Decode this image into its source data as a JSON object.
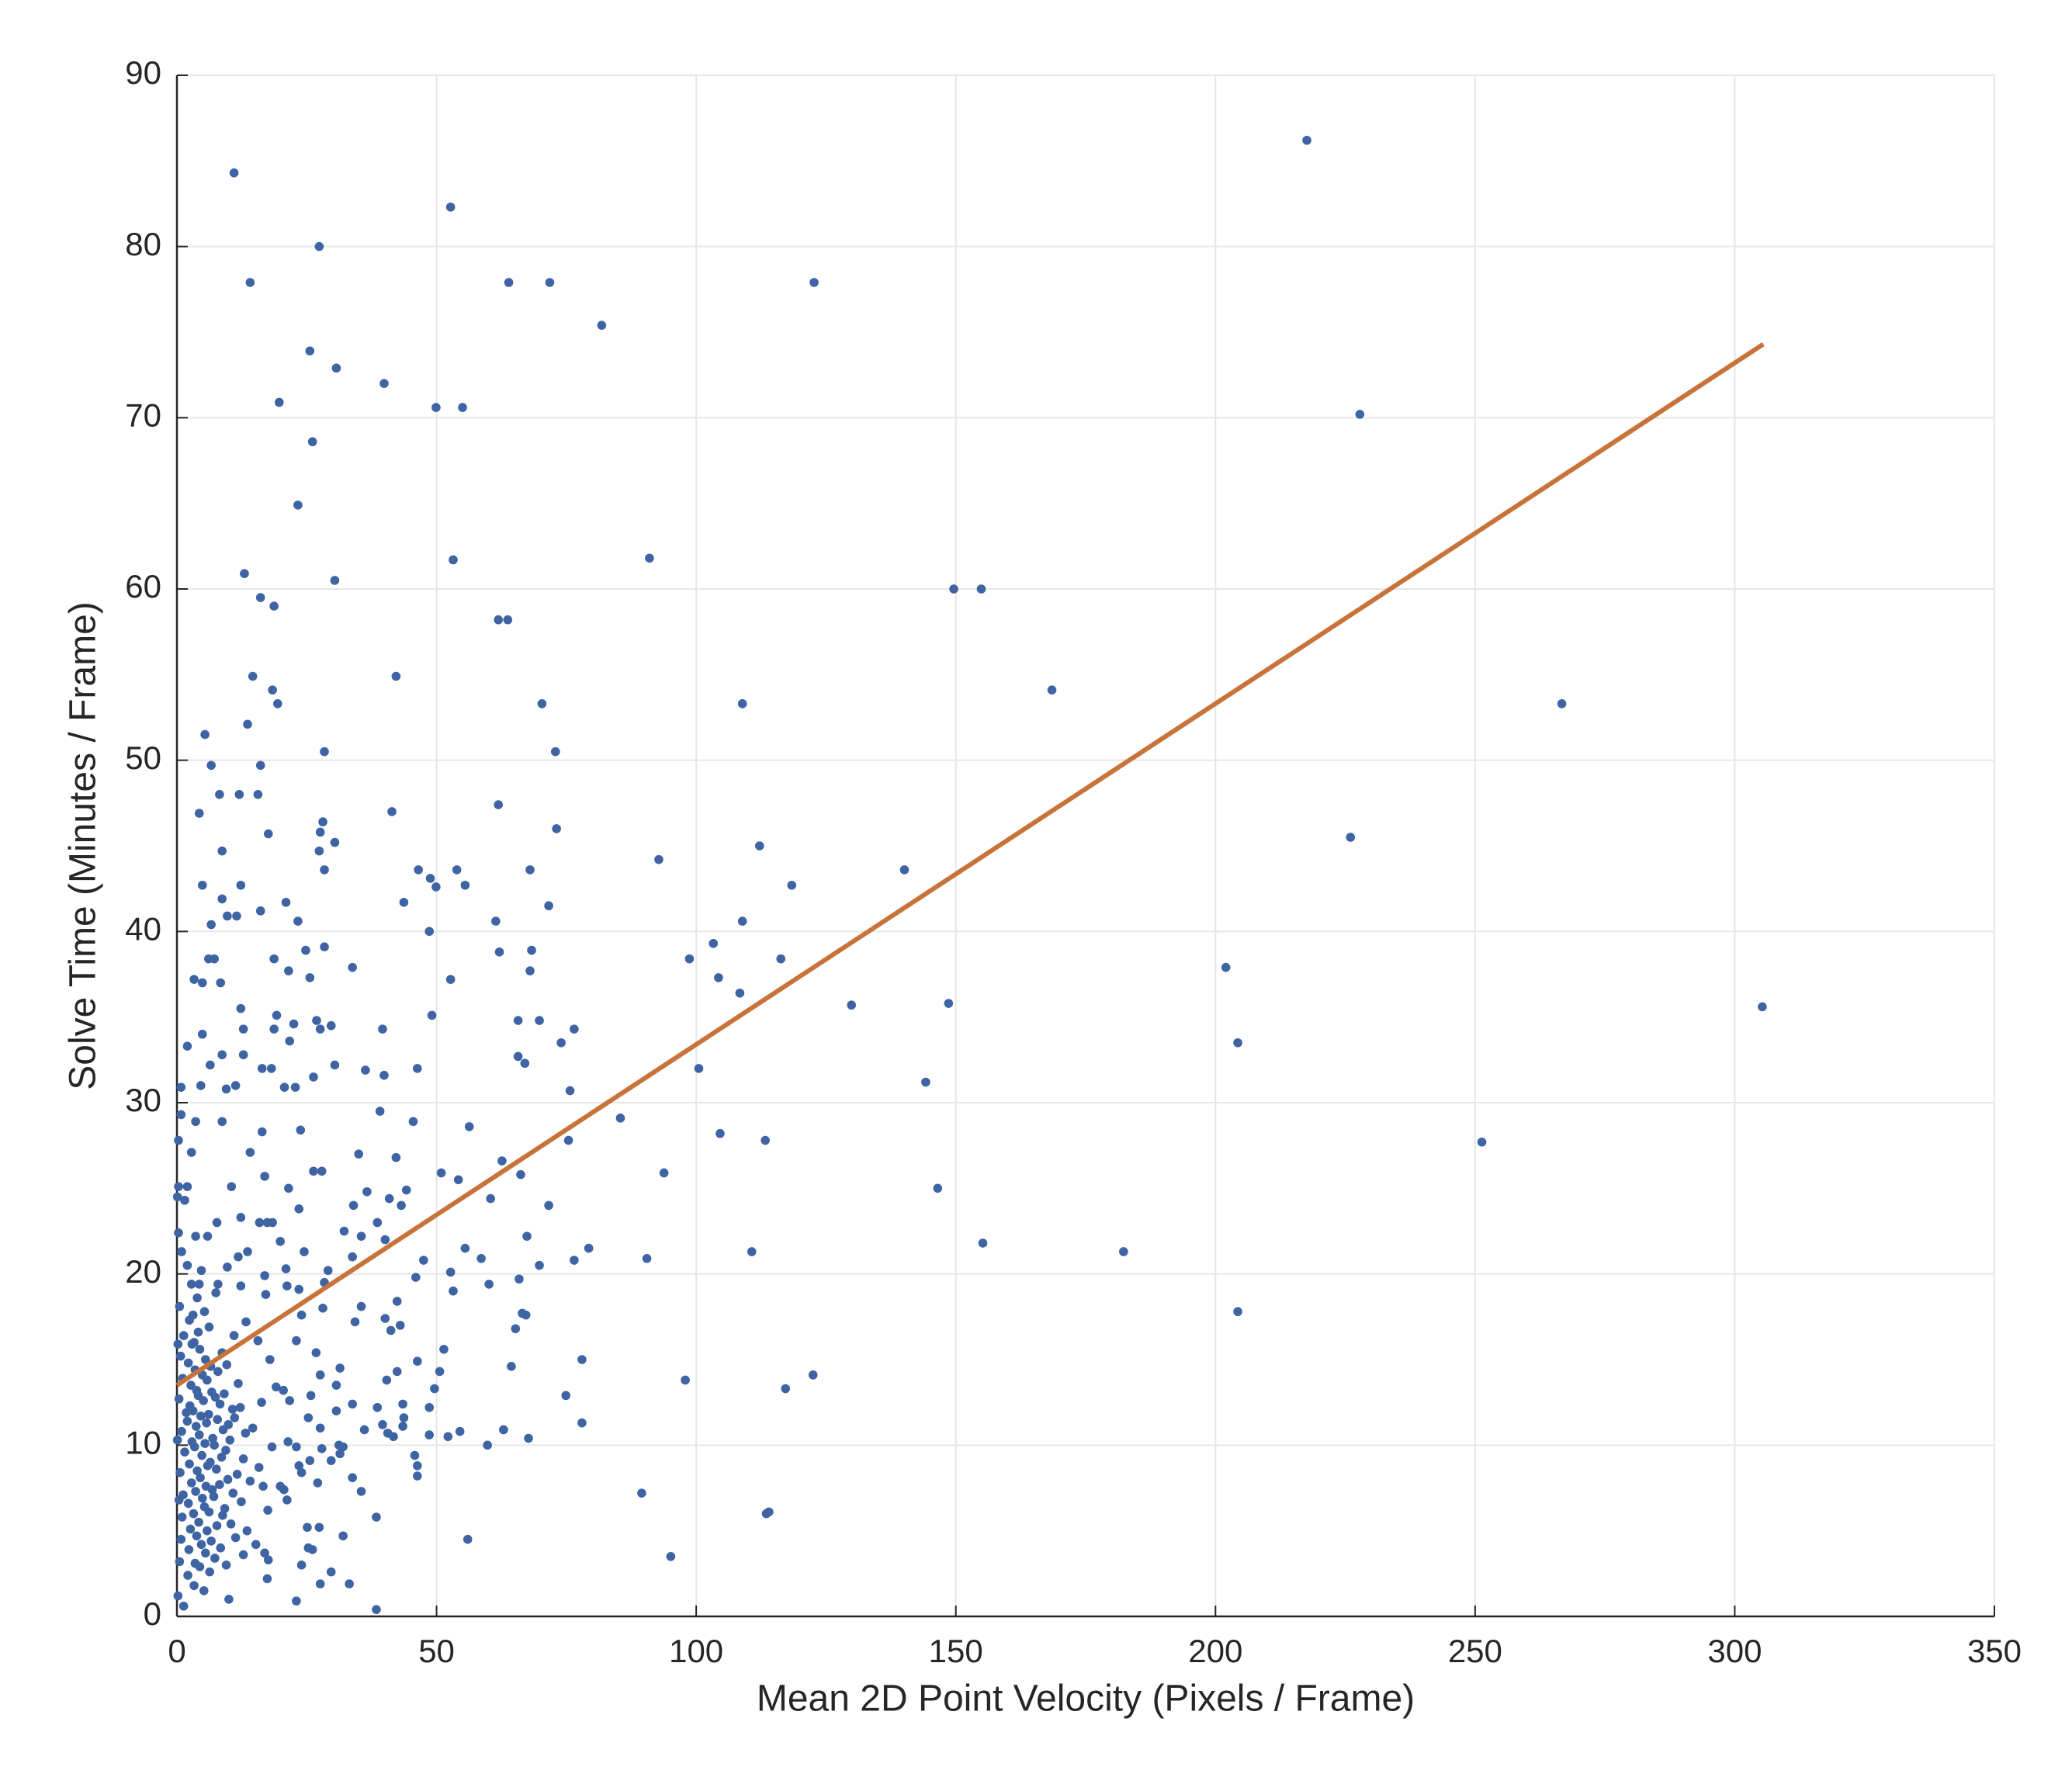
{
  "chart_data": {
    "type": "scatter",
    "x_label": "Mean 2D Point Velocity (Pixels / Frame)",
    "y_label": "Solve Time (Minutes / Frame)",
    "xlim": [
      0,
      350
    ],
    "xticks": [
      0,
      50,
      100,
      150,
      200,
      250,
      300,
      350
    ],
    "ylim": [
      0,
      90
    ],
    "yticks": [
      0,
      10,
      20,
      30,
      40,
      50,
      60,
      70,
      80,
      90
    ],
    "grid": true,
    "series": [
      {
        "color": "#3e64a3",
        "x": [
          11,
          217.6,
          52.7,
          27.4,
          14.1,
          63.9,
          71.8,
          122.7,
          81.8,
          25.6,
          30.7,
          39.9,
          19.7,
          49.9,
          55.0,
          227.8,
          26.1,
          23.3,
          91.0,
          53.2,
          13.0,
          30.4,
          16.1,
          18.7,
          149.6,
          154.9,
          61.9,
          63.7,
          168.5,
          42.2,
          14.6,
          18.4,
          19.4,
          70.3,
          108.9,
          266.7,
          13.6,
          5.4,
          28.4,
          72.9,
          6.6,
          16.1,
          8.2,
          12.0,
          15.6,
          61.9,
          41.4,
          4.3,
          28.1,
          73.1,
          27.6,
          226.0,
          30.4,
          17.6,
          112.2,
          27.4,
          8.7,
          92.8,
          28.4,
          46.5,
          53.9,
          68.0,
          140.1,
          48.8,
          55.5,
          118.4,
          4.9,
          12.3,
          49.9,
          8.7,
          43.7,
          21.0,
          71.6,
          16.1,
          9.7,
          11.5,
          6.6,
          23.3,
          61.4,
          108.9,
          48.6,
          103.3,
          28.4,
          24.8,
          68.3,
          6.1,
          7.2,
          18.7,
          98.7,
          116.3,
          62.1,
          33.8,
          202.0,
          21.5,
          68.0,
          25.6,
          3.3,
          104.3,
          52.7,
          4.9,
          8.4,
          108.4,
          129.9,
          148.6,
          305.3,
          12.3,
          19.2,
          49.1,
          26.9,
          65.7,
          69.8,
          22.5,
          29.7,
          39.6,
          76.5,
          4.9,
          12.8,
          18.7,
          27.6,
          74.0,
          204.3,
          2.0,
          21.7,
          8.7,
          12.8,
          65.7,
          67.0,
          100.5,
          30.4,
          46.3,
          36.3,
          16.4,
          6.4,
          18.2,
          26.3,
          39.9,
          144.2,
          0.8,
          22.8,
          75.7,
          4.6,
          20.7,
          9.5,
          11.3,
          39.1,
          0.8,
          85.4,
          45.5,
          3.6,
          8.7,
          56.3,
          104.6,
          23.8,
          16.4,
          113.3,
          0.3,
          251.3,
          75.4,
          14.1,
          42.2,
          35.0,
          2.8,
          62.6,
          26.3,
          27.9,
          50.9,
          66.2,
          93.8,
          54.2,
          0.3,
          16.9,
          2.0,
          10.5,
          21.5,
          146.5,
          36.6,
          44.2,
          40.9,
          60.4,
          1.5,
          71.6,
          43.2,
          34.0,
          23.5,
          12.3,
          15.9,
          17.4,
          18.4,
          7.7,
          38.6,
          67.4,
          32.2,
          35.5,
          3.6,
          5.9,
          19.9,
          155.2,
          40.1,
          55.5,
          79.3,
          110.7,
          182.3,
          24.5,
          33.8,
          13.6,
          11.8,
          47.5,
          58.6,
          90.5,
          76.5,
          69.8,
          2.0,
          9.7,
          21.0,
          52.7,
          29.1,
          16.9,
          60.1,
          28.4,
          65.9,
          46.0,
          2.8,
          4.3,
          7.9,
          12.3,
          21.2,
          53.2,
          23.5,
          17.1,
          35.5,
          42.4,
          28.1,
          66.5,
          67.2,
          204.3,
          24.0,
          3.1,
          40.1,
          34.3,
          13.3,
          65.2,
          43.0,
          41.2,
          4.1,
          11.0,
          15.6,
          23.0,
          51.4,
          26.8,
          17.9,
          78.0,
          46.3,
          42.4,
          64.4,
          31.4,
          50.6,
          122.5,
          27.6,
          117.2,
          97.9,
          40.4,
          30.7,
          49.6,
          74.9,
          20.5,
          25.8,
          21.7,
          33.8,
          38.6,
          43.5,
          48.6,
          30.7,
          43.7,
          25.3,
          78.0,
          39.6,
          27.6,
          43.5,
          62.9,
          54.5,
          40.6,
          36.1,
          41.7,
          52.2,
          48.6,
          67.7,
          59.8,
          32.0,
          31.2,
          23.0,
          27.9,
          45.8,
          46.3,
          46.3,
          25.6,
          31.4,
          29.7,
          23.5,
          24.0,
          33.8,
          35.5,
          89.5,
          16.6,
          19.9,
          27.1,
          21.2,
          114.0,
          113.5,
          38.4,
          25.1,
          27.4,
          32.0,
          56.0,
          25.3,
          26.1,
          95.1,
          16.9,
          17.6,
          12.8,
          24.0,
          29.7,
          17.4,
          27.6,
          33.2,
          23.0,
          10.0,
          38.4,
          1.3,
          0.5,
          0.8,
          1.0,
          1.2,
          0.6,
          1.5,
          0.9,
          1.8,
          0.4,
          1.1,
          0.7,
          1.3,
          0.5,
          0.9,
          2.1,
          2.3,
          2.6,
          2.2,
          2.8,
          2.4,
          2.9,
          2.0,
          2.5,
          2.7,
          2.2,
          2.9,
          2.4,
          3.3,
          3.5,
          3.8,
          3.2,
          3.6,
          3.9,
          3.4,
          3.7,
          3.1,
          3.8,
          3.5,
          3.3,
          3.9,
          4.4,
          4.7,
          4.2,
          4.9,
          4.5,
          4.8,
          4.3,
          4.6,
          4.1,
          4.9,
          4.4,
          4.7,
          5.2,
          5.5,
          5.8,
          5.3,
          5.6,
          5.9,
          5.4,
          5.7,
          5.1,
          5.8,
          5.5,
          5.3,
          6.3,
          6.6,
          6.2,
          6.8,
          6.4,
          6.9,
          6.1,
          6.7,
          6.5,
          6.2,
          7.3,
          7.7,
          7.1,
          7.6,
          7.2,
          7.8,
          7.4,
          7.9,
          7.5,
          8.4,
          8.8,
          8.2,
          8.6,
          8.9,
          8.3,
          8.7,
          9.5,
          9.2,
          9.8,
          9.4,
          9.9,
          9.1,
          9.6,
          10.4,
          10.8,
          10.2,
          10.7,
          11.3,
          11.6,
          11.1,
          11.8,
          12.4,
          12.8,
          12.2,
          13.5,
          13.2,
          14.1,
          14.6,
          15.2,
          15.8,
          16.3,
          17.5,
          18.3,
          19.1,
          20.6,
          21.4,
          0.2,
          0.3,
          0.1,
          0.2,
          0.4,
          0.1
        ],
        "values": [
          84.3,
          86.2,
          82.3,
          80.0,
          77.9,
          77.9,
          77.9,
          77.9,
          75.4,
          73.9,
          72.9,
          72.0,
          70.9,
          70.6,
          70.6,
          70.2,
          68.6,
          64.9,
          61.8,
          61.7,
          60.9,
          60.5,
          59.5,
          59.0,
          60.0,
          60.0,
          58.2,
          58.2,
          54.1,
          54.9,
          54.9,
          54.1,
          53.3,
          53.3,
          53.3,
          53.3,
          52.1,
          51.5,
          50.5,
          50.5,
          49.7,
          49.7,
          48.0,
          48.0,
          48.0,
          47.4,
          47.0,
          46.9,
          46.4,
          46.0,
          45.8,
          45.5,
          45.2,
          45.7,
          45.0,
          44.7,
          44.7,
          44.2,
          43.6,
          43.6,
          43.6,
          43.6,
          43.6,
          43.1,
          42.7,
          42.7,
          42.7,
          42.7,
          42.6,
          41.9,
          41.7,
          41.7,
          41.5,
          41.2,
          40.9,
          40.9,
          40.4,
          40.6,
          40.6,
          40.6,
          40.0,
          39.3,
          39.1,
          38.9,
          38.9,
          38.4,
          38.4,
          38.4,
          38.4,
          38.4,
          38.8,
          37.9,
          37.9,
          37.7,
          37.7,
          37.3,
          37.2,
          37.3,
          37.2,
          37.0,
          37.0,
          36.4,
          35.7,
          35.8,
          35.6,
          35.5,
          35.1,
          35.1,
          34.8,
          34.8,
          34.8,
          34.6,
          34.5,
          34.3,
          34.3,
          34.0,
          34.3,
          34.3,
          34.3,
          33.5,
          33.5,
          33.3,
          33.6,
          32.8,
          32.8,
          32.7,
          32.3,
          32.0,
          32.2,
          32.0,
          31.9,
          32.0,
          32.2,
          32.0,
          31.5,
          31.6,
          31.2,
          30.9,
          30.9,
          30.7,
          31.0,
          30.9,
          30.8,
          31.0,
          29.5,
          29.3,
          29.1,
          28.9,
          28.9,
          28.9,
          28.6,
          28.2,
          28.4,
          28.3,
          27.8,
          27.8,
          27.7,
          27.8,
          27.1,
          26.8,
          27.0,
          27.1,
          26.6,
          26.0,
          26.0,
          25.9,
          25.8,
          25.9,
          25.5,
          25.1,
          25.7,
          25.1,
          25.1,
          25.0,
          25.0,
          24.8,
          24.9,
          24.4,
          24.4,
          24.3,
          24.0,
          24.0,
          24.0,
          23.8,
          23.3,
          23.0,
          23.0,
          23.0,
          23.0,
          23.0,
          22.2,
          22.5,
          22.2,
          22.2,
          22.2,
          21.9,
          21.8,
          22.0,
          21.5,
          21.5,
          21.3,
          21.3,
          21.3,
          21.0,
          21.3,
          21.0,
          20.8,
          20.9,
          20.9,
          20.8,
          20.5,
          20.5,
          20.4,
          20.3,
          20.1,
          20.2,
          19.9,
          19.4,
          19.5,
          19.7,
          19.8,
          19.4,
          19.4,
          19.4,
          19.3,
          19.3,
          19.0,
          19.1,
          18.8,
          18.1,
          18.4,
          18.0,
          17.7,
          17.6,
          17.8,
          17.6,
          17.6,
          17.4,
          17.2,
          17.2,
          16.8,
          17.0,
          16.7,
          16.6,
          16.4,
          16.1,
          16.1,
          15.6,
          15.4,
          15.0,
          15.0,
          14.9,
          14.3,
          14.6,
          14.5,
          14.3,
          14.1,
          14.1,
          13.3,
          13.8,
          13.8,
          13.5,
          13.3,
          12.9,
          13.2,
          12.9,
          12.6,
          12.4,
          12.2,
          12.4,
          12.2,
          12.0,
          11.6,
          11.6,
          11.3,
          11.2,
          11.0,
          11.1,
          10.9,
          10.8,
          10.7,
          10.9,
          10.5,
          10.5,
          10.6,
          10.4,
          10.0,
          9.9,
          10.0,
          9.9,
          9.8,
          9.4,
          8.8,
          8.2,
          9.1,
          9.5,
          9.1,
          8.8,
          8.4,
          8.1,
          7.3,
          7.2,
          7.6,
          7.6,
          7.8,
          6.8,
          6.1,
          6.0,
          5.8,
          5.2,
          5.2,
          4.7,
          4.5,
          4.0,
          3.9,
          3.5,
          3.7,
          3.3,
          3.6,
          3.0,
          2.6,
          2.2,
          1.9,
          1.9,
          0.9,
          1.0,
          0.4,
          0.6,
          3.2,
          4.5,
          5.8,
          7.1,
          8.4,
          9.6,
          10.8,
          11.9,
          12.7,
          13.9,
          15.2,
          16.4,
          18.1,
          21.3,
          2.4,
          3.9,
          5.1,
          6.6,
          7.8,
          8.9,
          10.2,
          11.4,
          12.3,
          13.5,
          14.8,
          15.9,
          17.3,
          1.8,
          3.1,
          4.7,
          6.0,
          7.3,
          8.5,
          9.9,
          11.1,
          12.0,
          13.2,
          14.4,
          16.0,
          18.6,
          2.9,
          4.2,
          5.5,
          6.9,
          8.1,
          9.4,
          10.6,
          11.7,
          12.9,
          14.1,
          15.6,
          20.2,
          1.5,
          3.7,
          5.0,
          6.4,
          7.6,
          8.8,
          10.1,
          11.3,
          12.6,
          13.8,
          15.0,
          17.8,
          2.6,
          4.4,
          6.1,
          7.4,
          9.0,
          10.4,
          11.8,
          13.1,
          14.6,
          16.9,
          3.4,
          5.3,
          7.0,
          8.6,
          10.0,
          11.5,
          12.8,
          14.3,
          18.9,
          4.0,
          5.9,
          7.7,
          9.3,
          10.9,
          12.4,
          15.4,
          3.0,
          6.3,
          8.0,
          9.7,
          11.2,
          13.0,
          14.7,
          5.4,
          7.2,
          10.3,
          12.1,
          4.6,
          8.3,
          11.6,
          13.6,
          6.7,
          9.2,
          12.2,
          5.0,
          10.7,
          7.9,
          11.0,
          4.2,
          8.7,
          12.5,
          6.2,
          9.9,
          13.4,
          7.4,
          10.2,
          1.2,
          22.4,
          24.5,
          15.9,
          6.8,
          10.3
        ]
      },
      {
        "type": "line",
        "color": "#c8733a",
        "x": [
          0,
          305.5
        ],
        "values": [
          13.5,
          74.3
        ]
      }
    ]
  }
}
